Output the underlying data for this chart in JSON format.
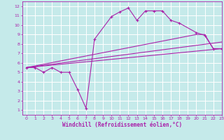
{
  "xlabel": "Windchill (Refroidissement éolien,°C)",
  "xlim": [
    -0.5,
    23
  ],
  "ylim": [
    0.5,
    12.5
  ],
  "xticks": [
    0,
    1,
    2,
    3,
    4,
    5,
    6,
    7,
    8,
    9,
    10,
    11,
    12,
    13,
    14,
    15,
    16,
    17,
    18,
    19,
    20,
    21,
    22,
    23
  ],
  "yticks": [
    1,
    2,
    3,
    4,
    5,
    6,
    7,
    8,
    9,
    10,
    11,
    12
  ],
  "bg_color": "#c5eaea",
  "line_color": "#aa22aa",
  "grid_color": "#ffffff",
  "line1_x": [
    0,
    1,
    2,
    3,
    4,
    5,
    6,
    7,
    8,
    10,
    11,
    12,
    13,
    14,
    15,
    16,
    17,
    18,
    20,
    21,
    22,
    23
  ],
  "line1_y": [
    5.5,
    5.5,
    5.0,
    5.5,
    5.0,
    5.0,
    3.2,
    1.2,
    8.5,
    10.9,
    11.4,
    11.8,
    10.5,
    11.5,
    11.5,
    11.5,
    10.5,
    10.2,
    9.2,
    8.9,
    7.5,
    7.5
  ],
  "line2_x": [
    0,
    20,
    21,
    22,
    23
  ],
  "line2_y": [
    5.5,
    9.0,
    9.0,
    7.5,
    7.5
  ],
  "line3_x": [
    0,
    23
  ],
  "line3_y": [
    5.5,
    8.2
  ],
  "line4_x": [
    0,
    23
  ],
  "line4_y": [
    5.5,
    7.5
  ],
  "tick_fontsize": 4.5,
  "xlabel_fontsize": 5.5
}
